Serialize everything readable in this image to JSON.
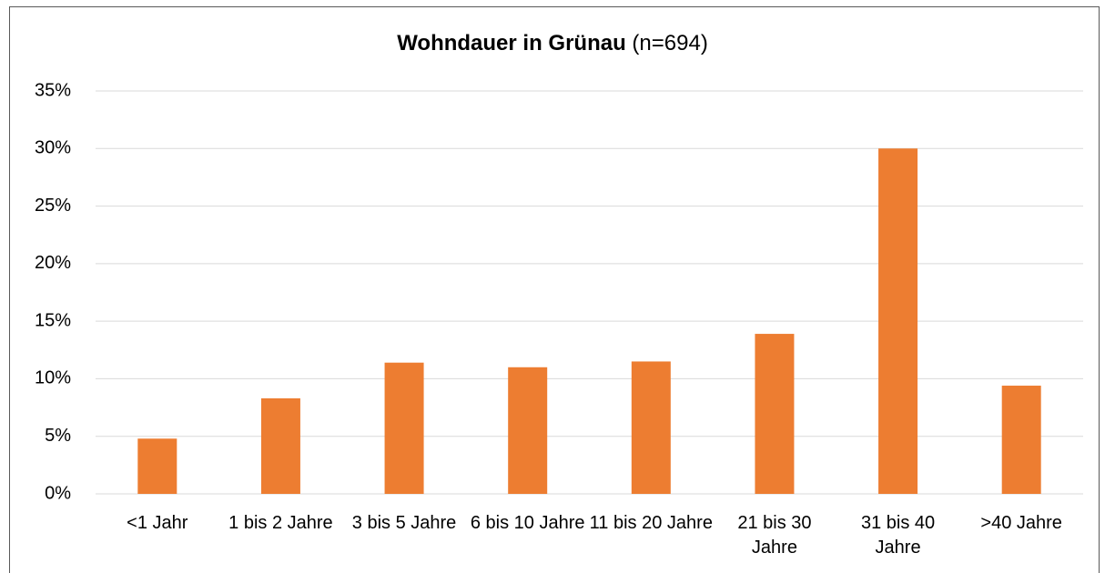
{
  "chart_data": {
    "type": "bar",
    "title": "Wohndauer in Grünau",
    "subtitle": "(n=694)",
    "categories": [
      "<1 Jahr",
      "1 bis 2 Jahre",
      "3 bis 5 Jahre",
      "6 bis 10 Jahre",
      "11 bis 20 Jahre",
      "21 bis 30 Jahre",
      "31 bis 40 Jahre",
      ">40 Jahre"
    ],
    "values": [
      4.8,
      8.3,
      11.4,
      11.0,
      11.5,
      13.9,
      30.0,
      9.4
    ],
    "color": "#ed7d31",
    "ylim": [
      0,
      35
    ],
    "yticks": [
      {
        "value": 0,
        "label": "0%"
      },
      {
        "value": 5,
        "label": "5%"
      },
      {
        "value": 10,
        "label": "10%"
      },
      {
        "value": 15,
        "label": "15%"
      },
      {
        "value": 20,
        "label": "20%"
      },
      {
        "value": 25,
        "label": "25%"
      },
      {
        "value": 30,
        "label": "30%"
      },
      {
        "value": 35,
        "label": "35%"
      }
    ],
    "grid": true
  }
}
